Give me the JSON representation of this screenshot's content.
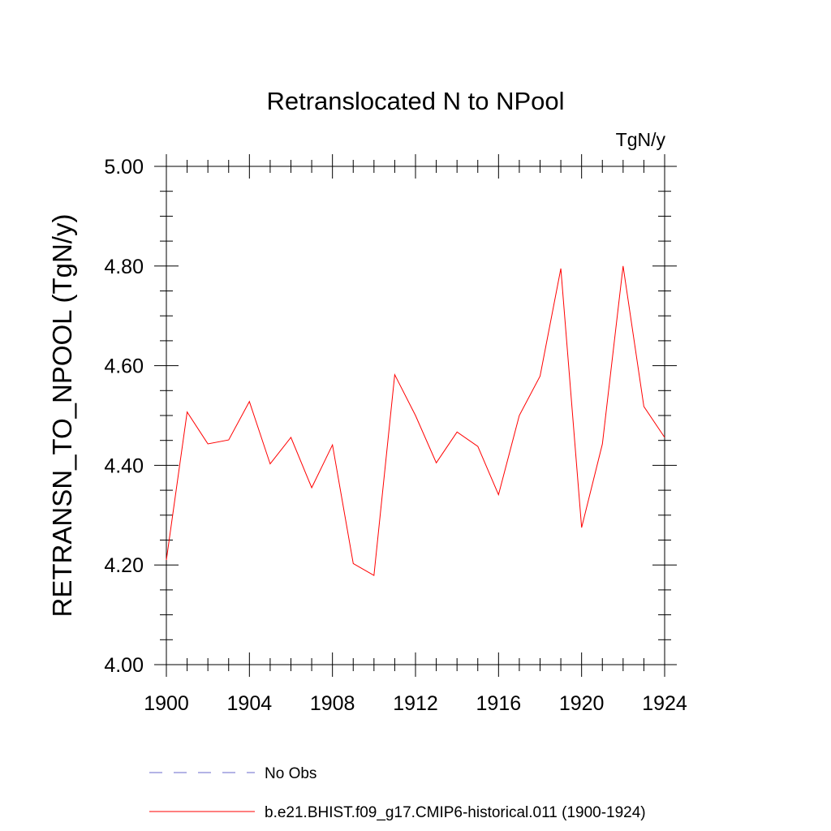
{
  "chart_data": {
    "type": "line",
    "title": "Retranslocated N to NPool",
    "units": "TgN/y",
    "xlabel": "",
    "ylabel": "RETRANSN_TO_NPOOL  (TgN/y)",
    "xlim": [
      1900,
      1924
    ],
    "ylim": [
      4.0,
      5.0
    ],
    "x_ticks": [
      1900,
      1904,
      1908,
      1912,
      1916,
      1920,
      1924
    ],
    "x_tick_labels": [
      "1900",
      "1904",
      "1908",
      "1912",
      "1916",
      "1920",
      "1924"
    ],
    "y_ticks": [
      4.0,
      4.2,
      4.4,
      4.6,
      4.8,
      5.0
    ],
    "y_tick_labels": [
      "4.00",
      "4.20",
      "4.40",
      "4.60",
      "4.80",
      "5.00"
    ],
    "grid": false,
    "legend_position": "bottom",
    "series": [
      {
        "name": "No Obs",
        "color": "#6a6acd",
        "style": "dashed",
        "x": [],
        "y": []
      },
      {
        "name": "b.e21.BHIST.f09_g17.CMIP6-historical.011 (1900-1924)",
        "color": "#ff0000",
        "style": "solid",
        "x": [
          1900,
          1901,
          1902,
          1903,
          1904,
          1905,
          1906,
          1907,
          1908,
          1909,
          1910,
          1911,
          1912,
          1913,
          1914,
          1915,
          1916,
          1917,
          1918,
          1919,
          1920,
          1921,
          1922,
          1923,
          1924
        ],
        "y": [
          4.21,
          4.507,
          4.443,
          4.451,
          4.528,
          4.403,
          4.456,
          4.355,
          4.441,
          4.203,
          4.179,
          4.582,
          4.5,
          4.405,
          4.467,
          4.438,
          4.341,
          4.5,
          4.579,
          4.795,
          4.275,
          4.443,
          4.8,
          4.518,
          4.456
        ]
      }
    ]
  }
}
